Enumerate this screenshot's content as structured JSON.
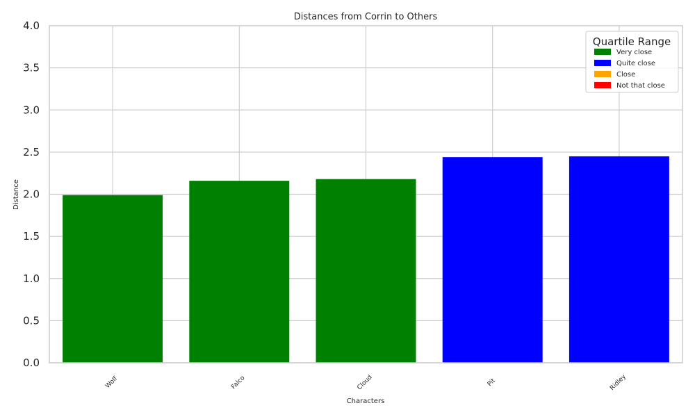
{
  "chart_data": {
    "type": "bar",
    "title": "Distances from Corrin to Others",
    "xlabel": "Characters",
    "ylabel": "Distance",
    "categories": [
      "Wolf",
      "Falco",
      "Cloud",
      "Pit",
      "Ridley"
    ],
    "values": [
      1.99,
      2.16,
      2.18,
      2.44,
      2.45
    ],
    "bar_quartiles": [
      "Very close",
      "Very close",
      "Very close",
      "Quite close",
      "Quite close"
    ],
    "ylim": [
      0,
      4
    ],
    "yticks": [
      0.0,
      0.5,
      1.0,
      1.5,
      2.0,
      2.5,
      3.0,
      3.5,
      4.0
    ],
    "ytick_labels": [
      "0.0",
      "0.5",
      "1.0",
      "1.5",
      "2.0",
      "2.5",
      "3.0",
      "3.5",
      "4.0"
    ],
    "grid": true,
    "legend": {
      "title": "Quartile Range",
      "placement": "top-right",
      "entries": [
        {
          "label": "Very close",
          "color": "#008000"
        },
        {
          "label": "Quite close",
          "color": "#0000ff"
        },
        {
          "label": "Close",
          "color": "#ffa500"
        },
        {
          "label": "Not that close",
          "color": "#ff0000"
        }
      ]
    }
  }
}
